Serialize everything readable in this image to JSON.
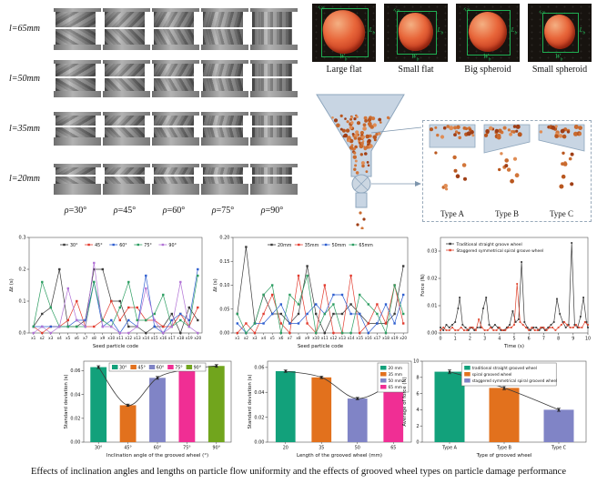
{
  "caption": "Effects of inclination angles and lengths on particle flow uniformity and the effects of grooved wheel types on particle damage performance",
  "wheel_panel": {
    "row_labels": [
      "l=65mm",
      "l=50mm",
      "l=35mm",
      "l=20mm"
    ],
    "col_labels": [
      "ρ=30°",
      "ρ=45°",
      "ρ=60°",
      "ρ=75°",
      "ρ=90°"
    ],
    "angles": [
      30,
      45,
      60,
      75,
      90
    ]
  },
  "seed_panel": {
    "items": [
      {
        "label": "Large flat"
      },
      {
        "label": "Small flat"
      },
      {
        "label": "Big spheroid"
      },
      {
        "label": "Small spheroid"
      }
    ],
    "dim_labels": {
      "length": "Lb",
      "width": "Wb",
      "thickness": "Tb"
    },
    "annotation_color": "#1fae52"
  },
  "hopper_panel": {
    "type_labels": [
      "Type A",
      "Type B",
      "Type C"
    ],
    "hopper_color": "#c8d5e3",
    "outline_color": "#8ea6bd",
    "particle_color": "#c9682e"
  },
  "chart_data": [
    {
      "id": "c1",
      "type": "line-cat",
      "ylabel": "Δt (s)",
      "xlabel": "Seed particle code",
      "ylim": [
        0,
        0.3
      ],
      "yticks": [
        0,
        0.1,
        0.2,
        0.3
      ],
      "ytick_labels": [
        "0.0",
        "0.1",
        "0.2",
        "0.3"
      ],
      "categories": [
        "x1",
        "x2",
        "x3",
        "x4",
        "x5",
        "x6",
        "x7",
        "x8",
        "x9",
        "x10",
        "x11",
        "x12",
        "x13",
        "x14",
        "x15",
        "x16",
        "x17",
        "x18",
        "x19",
        "x20"
      ],
      "series": [
        {
          "name": "30°",
          "color": "#3a3a3a",
          "values": [
            0.02,
            0.06,
            0.08,
            0.2,
            0.02,
            0.02,
            0.04,
            0.2,
            0.2,
            0.1,
            0.1,
            0.02,
            0.02,
            0.0,
            0.02,
            0.02,
            0.06,
            0.0,
            0.08,
            0.04
          ]
        },
        {
          "name": "45°",
          "color": "#e23b2e",
          "values": [
            0.02,
            0.0,
            0.02,
            0.02,
            0.04,
            0.1,
            0.02,
            0.02,
            0.04,
            0.1,
            0.04,
            0.08,
            0.08,
            0.04,
            0.04,
            0.02,
            0.02,
            0.06,
            0.02,
            0.08
          ]
        },
        {
          "name": "60°",
          "color": "#2f5fd0",
          "values": [
            0.02,
            0.02,
            0.02,
            0.02,
            0.02,
            0.04,
            0.04,
            0.16,
            0.02,
            0.04,
            0.0,
            0.04,
            0.02,
            0.18,
            0.02,
            0.0,
            0.04,
            0.06,
            0.04,
            0.2
          ]
        },
        {
          "name": "75°",
          "color": "#2d9e62",
          "values": [
            0.02,
            0.16,
            0.08,
            0.02,
            0.02,
            0.02,
            0.02,
            0.16,
            0.04,
            0.02,
            0.08,
            0.16,
            0.04,
            0.04,
            0.06,
            0.12,
            0.02,
            0.04,
            0.02,
            0.18
          ]
        },
        {
          "name": "90°",
          "color": "#b273d6",
          "values": [
            0.0,
            0.02,
            0.0,
            0.02,
            0.14,
            0.04,
            0.02,
            0.22,
            0.02,
            0.02,
            0.0,
            0.0,
            0.02,
            0.14,
            0.04,
            0.0,
            0.02,
            0.16,
            0.02,
            0.0
          ]
        }
      ]
    },
    {
      "id": "c2",
      "type": "line-cat",
      "ylabel": "Δt (s)",
      "xlabel": "Seed particle code",
      "ylim": [
        0,
        0.2
      ],
      "yticks": [
        0,
        0.05,
        0.1,
        0.15,
        0.2
      ],
      "ytick_labels": [
        "0.00",
        "0.05",
        "0.10",
        "0.15",
        "0.20"
      ],
      "categories": [
        "x1",
        "x2",
        "x3",
        "x4",
        "x5",
        "x6",
        "x7",
        "x8",
        "x9",
        "x10",
        "x11",
        "x12",
        "x13",
        "x14",
        "x15",
        "x16",
        "x17",
        "x18",
        "x19",
        "x20"
      ],
      "series": [
        {
          "name": "20mm",
          "color": "#3a3a3a",
          "values": [
            0.04,
            0.18,
            0.02,
            0.08,
            0.04,
            0.04,
            0.02,
            0.04,
            0.14,
            0.04,
            0.0,
            0.04,
            0.04,
            0.06,
            0.04,
            0.02,
            0.02,
            0.02,
            0.04,
            0.14
          ]
        },
        {
          "name": "35mm",
          "color": "#e23b2e",
          "values": [
            0.0,
            0.02,
            0.0,
            0.04,
            0.08,
            0.02,
            0.0,
            0.12,
            0.02,
            0.0,
            0.1,
            0.0,
            0.0,
            0.12,
            0.0,
            0.02,
            0.06,
            0.02,
            0.1,
            0.02
          ]
        },
        {
          "name": "50mm",
          "color": "#2f5fd0",
          "values": [
            0.02,
            0.0,
            0.02,
            0.02,
            0.04,
            0.06,
            0.02,
            0.02,
            0.04,
            0.06,
            0.04,
            0.08,
            0.08,
            0.04,
            0.04,
            0.0,
            0.02,
            0.06,
            0.02,
            0.08
          ]
        },
        {
          "name": "65mm",
          "color": "#2d9e62",
          "values": [
            0.04,
            0.0,
            0.02,
            0.08,
            0.1,
            0.0,
            0.08,
            0.06,
            0.12,
            0.0,
            0.04,
            0.06,
            0.0,
            0.0,
            0.08,
            0.06,
            0.04,
            0.0,
            0.1,
            0.04
          ]
        }
      ]
    },
    {
      "id": "c3",
      "type": "line-xy",
      "ylabel": "Force (N)",
      "xlabel": "Time (s)",
      "xlim": [
        0,
        10
      ],
      "ylim": [
        0,
        0.035
      ],
      "xticks": [
        0,
        1,
        2,
        3,
        4,
        5,
        6,
        7,
        8,
        9,
        10
      ],
      "yticks": [
        0,
        0.01,
        0.02,
        0.03
      ],
      "ytick_labels": [
        "0.00",
        "0.01",
        "0.02",
        "0.03"
      ],
      "series": [
        {
          "name": "Traditional straight groove wheel",
          "color": "#3a3a3a",
          "points": [
            [
              0,
              0.002
            ],
            [
              0.2,
              0.001
            ],
            [
              0.4,
              0.003
            ],
            [
              0.6,
              0.002
            ],
            [
              0.8,
              0.003
            ],
            [
              1.0,
              0.004
            ],
            [
              1.2,
              0.009
            ],
            [
              1.3,
              0.013
            ],
            [
              1.5,
              0.003
            ],
            [
              1.7,
              0.002
            ],
            [
              1.9,
              0.001
            ],
            [
              2.1,
              0.002
            ],
            [
              2.3,
              0.001
            ],
            [
              2.5,
              0.002
            ],
            [
              2.7,
              0.002
            ],
            [
              2.9,
              0.009
            ],
            [
              3.1,
              0.013
            ],
            [
              3.3,
              0.003
            ],
            [
              3.5,
              0.002
            ],
            [
              3.7,
              0.003
            ],
            [
              3.9,
              0.002
            ],
            [
              4.1,
              0.001
            ],
            [
              4.3,
              0.001
            ],
            [
              4.5,
              0.002
            ],
            [
              4.7,
              0.003
            ],
            [
              4.9,
              0.008
            ],
            [
              5.1,
              0.004
            ],
            [
              5.3,
              0.005
            ],
            [
              5.5,
              0.026
            ],
            [
              5.7,
              0.004
            ],
            [
              5.9,
              0.002
            ],
            [
              6.1,
              0.001
            ],
            [
              6.3,
              0.002
            ],
            [
              6.5,
              0.002
            ],
            [
              6.7,
              0.001
            ],
            [
              6.9,
              0.002
            ],
            [
              7.1,
              0.001
            ],
            [
              7.3,
              0.002
            ],
            [
              7.5,
              0.003
            ],
            [
              7.7,
              0.004
            ],
            [
              7.9,
              0.0125
            ],
            [
              8.1,
              0.007
            ],
            [
              8.3,
              0.004
            ],
            [
              8.5,
              0.002
            ],
            [
              8.7,
              0.003
            ],
            [
              8.9,
              0.033
            ],
            [
              9.1,
              0.003
            ],
            [
              9.3,
              0.002
            ],
            [
              9.5,
              0.006
            ],
            [
              9.7,
              0.013
            ],
            [
              9.9,
              0.004
            ],
            [
              10,
              0.002
            ]
          ]
        },
        {
          "name": "Staggered symmetrical spiral groove wheel",
          "color": "#e0452e",
          "points": [
            [
              0,
              0.001
            ],
            [
              0.2,
              0.002
            ],
            [
              0.4,
              0.001
            ],
            [
              0.6,
              0.001
            ],
            [
              0.8,
              0.002
            ],
            [
              1.0,
              0.001
            ],
            [
              1.2,
              0.001
            ],
            [
              1.4,
              0.002
            ],
            [
              1.6,
              0.001
            ],
            [
              1.8,
              0.001
            ],
            [
              2.0,
              0.002
            ],
            [
              2.2,
              0.002
            ],
            [
              2.4,
              0.001
            ],
            [
              2.6,
              0.005
            ],
            [
              2.8,
              0.002
            ],
            [
              3.0,
              0.001
            ],
            [
              3.2,
              0.001
            ],
            [
              3.4,
              0.002
            ],
            [
              3.6,
              0.001
            ],
            [
              3.8,
              0.001
            ],
            [
              4.0,
              0.002
            ],
            [
              4.2,
              0.001
            ],
            [
              4.4,
              0.001
            ],
            [
              4.6,
              0.002
            ],
            [
              4.8,
              0.002
            ],
            [
              5.0,
              0.003
            ],
            [
              5.2,
              0.018
            ],
            [
              5.4,
              0.004
            ],
            [
              5.6,
              0.003
            ],
            [
              5.8,
              0.002
            ],
            [
              6.0,
              0.001
            ],
            [
              6.2,
              0.002
            ],
            [
              6.4,
              0.001
            ],
            [
              6.6,
              0.001
            ],
            [
              6.8,
              0.002
            ],
            [
              7.0,
              0.002
            ],
            [
              7.2,
              0.001
            ],
            [
              7.4,
              0.002
            ],
            [
              7.6,
              0.002
            ],
            [
              7.8,
              0.001
            ],
            [
              8.0,
              0.002
            ],
            [
              8.2,
              0.003
            ],
            [
              8.4,
              0.004
            ],
            [
              8.6,
              0.003
            ],
            [
              8.8,
              0.002
            ],
            [
              9.0,
              0.002
            ],
            [
              9.2,
              0.003
            ],
            [
              9.4,
              0.002
            ],
            [
              9.6,
              0.002
            ],
            [
              9.8,
              0.004
            ],
            [
              10,
              0.003
            ]
          ]
        }
      ]
    },
    {
      "id": "c4",
      "type": "bar",
      "ylabel": "Standard deviation (s)",
      "xlabel": "Inclination angle of the grooved wheel (°)",
      "ylim": [
        0,
        0.068
      ],
      "yticks": [
        0,
        0.02,
        0.04,
        0.06
      ],
      "ytick_labels": [
        "0.00",
        "0.02",
        "0.04",
        "0.06"
      ],
      "categories": [
        "30°",
        "45°",
        "60°",
        "75°",
        "90°"
      ],
      "values": [
        0.063,
        0.031,
        0.054,
        0.061,
        0.064
      ],
      "errors": [
        0.0012,
        0.001,
        0.0012,
        0.001,
        0.0012
      ],
      "colors": [
        "#12a17b",
        "#e2711d",
        "#8084c6",
        "#f02e94",
        "#71a51d"
      ],
      "legend": [
        "30°",
        "45°",
        "60°",
        "75°",
        "90°"
      ],
      "trend": true
    },
    {
      "id": "c5",
      "type": "bar",
      "ylabel": "Standard deviation (s)",
      "xlabel": "Length of the grooved wheel (mm)",
      "ylim": [
        0,
        0.065
      ],
      "yticks": [
        0,
        0.02,
        0.04,
        0.06
      ],
      "ytick_labels": [
        "0.00",
        "0.02",
        "0.04",
        "0.06"
      ],
      "categories": [
        "20",
        "35",
        "50",
        "65"
      ],
      "values": [
        0.057,
        0.052,
        0.035,
        0.048
      ],
      "errors": [
        0.001,
        0.001,
        0.001,
        0.001
      ],
      "colors": [
        "#12a17b",
        "#e2711d",
        "#8084c6",
        "#f02e94"
      ],
      "legend": [
        "20 mm",
        "35 mm",
        "50 mm",
        "65 mm"
      ],
      "trend": true
    },
    {
      "id": "c6",
      "type": "bar",
      "ylabel": "Average of force (N)",
      "xlabel": "Type of grooved wheel",
      "ylim": [
        0,
        10
      ],
      "yticks": [
        0,
        2,
        4,
        6,
        8,
        10
      ],
      "ytick_labels": [
        "0",
        "2",
        "4",
        "6",
        "8",
        "10"
      ],
      "categories": [
        "Type A",
        "Type B",
        "Type C"
      ],
      "values": [
        8.7,
        6.7,
        4.0
      ],
      "errors": [
        0.25,
        0.25,
        0.2
      ],
      "colors": [
        "#12a17b",
        "#e2711d",
        "#8084c6"
      ],
      "legend": [
        "traditional straight grooved wheel",
        "spiral grooved wheel",
        "staggered symmetrical spiral grooved wheel"
      ],
      "trend": true
    }
  ]
}
